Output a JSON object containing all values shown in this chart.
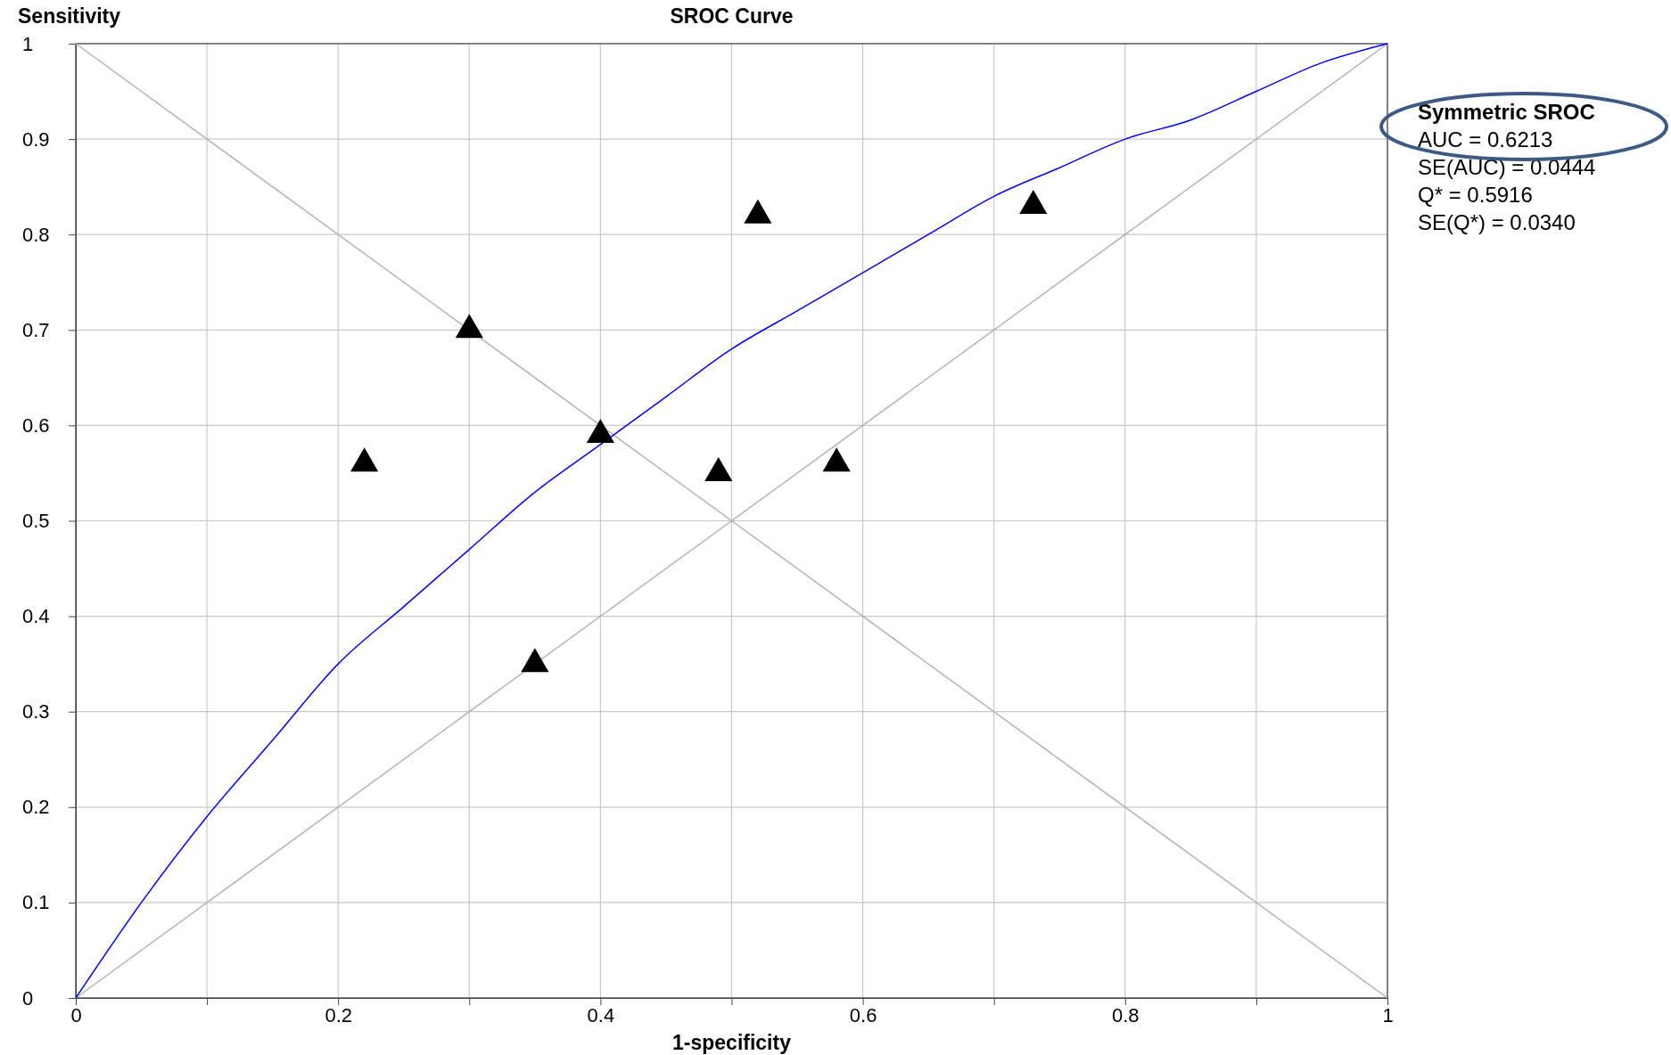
{
  "chart_data": {
    "type": "scatter",
    "title": "SROC Curve",
    "xlabel": "1-specificity",
    "ylabel": "Sensitivity",
    "xlim": [
      0,
      1
    ],
    "ylim": [
      0,
      1
    ],
    "xticks": [
      0,
      {
        "value": 0.1,
        "label": null
      },
      0.2,
      {
        "value": 0.3,
        "label": null
      },
      0.4,
      {
        "value": 0.5,
        "label": null
      },
      0.6,
      {
        "value": 0.7,
        "label": null
      },
      0.8,
      {
        "value": 0.9,
        "label": null
      },
      1
    ],
    "yticks": [
      0,
      0.1,
      0.2,
      0.3,
      0.4,
      0.5,
      0.6,
      0.7,
      0.8,
      0.9,
      1
    ],
    "grid": true,
    "series": [
      {
        "type": "line",
        "color": "#b4b4b4",
        "x": [
          0,
          1
        ],
        "values": [
          0,
          1
        ],
        "marker": "none"
      },
      {
        "type": "line",
        "color": "#b4b4b4",
        "x": [
          0,
          1
        ],
        "values": [
          1,
          0
        ],
        "marker": "none"
      },
      {
        "type": "line",
        "color": "#0000ff",
        "x": [
          0,
          0.05,
          0.1,
          0.15,
          0.2,
          0.25,
          0.3,
          0.35,
          0.4,
          0.45,
          0.5,
          0.55,
          0.6,
          0.65,
          0.7,
          0.75,
          0.8,
          0.85,
          0.9,
          0.95,
          1
        ],
        "values": [
          0,
          0.1,
          0.19,
          0.27,
          0.35,
          0.41,
          0.47,
          0.53,
          0.58,
          0.63,
          0.68,
          0.72,
          0.76,
          0.8,
          0.84,
          0.87,
          0.9,
          0.92,
          0.95,
          0.98,
          1
        ],
        "marker": "none"
      },
      {
        "color": "#000000",
        "marker": "triangle",
        "x": [
          0.22,
          0.3,
          0.4,
          0.35,
          0.49,
          0.52,
          0.58,
          0.73
        ],
        "values": [
          0.56,
          0.7,
          0.59,
          0.35,
          0.55,
          0.82,
          0.56,
          0.83
        ]
      }
    ],
    "annotations": [
      "Symmetric SROC",
      "AUC = 0.6213",
      "SE(AUC) = 0.0444",
      "Q* = 0.5916",
      "SE(Q*) = 0.0340"
    ]
  }
}
